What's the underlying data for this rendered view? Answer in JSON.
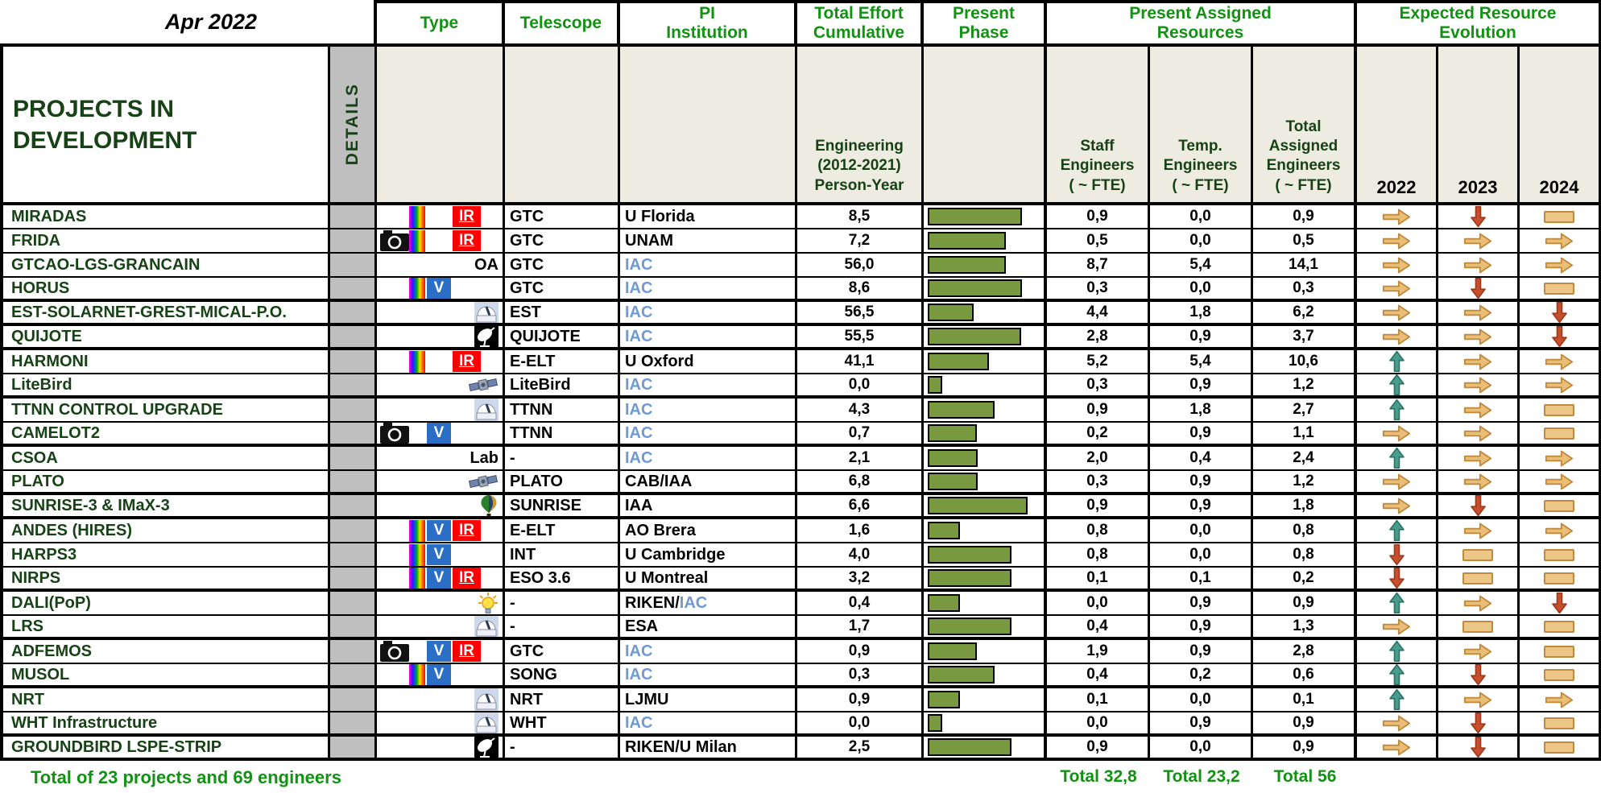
{
  "meta": {
    "date_label": "Apr 2022",
    "table_title": "PROJECTS IN\nDEVELOPMENT",
    "details_label": "DETAILS"
  },
  "columns": {
    "type": "Type",
    "telescope": "Telescope",
    "pi": "PI\nInstitution",
    "effort": "Total Effort\nCumulative",
    "effort_sub": "Engineering\n(2012-2021)\nPerson-Year",
    "phase": "Present\nPhase",
    "resources_group": "Present Assigned\nResources",
    "staff_sub": "Staff\nEngineers\n( ~ FTE)",
    "temp_sub": "Temp.\nEngineers\n( ~ FTE)",
    "total_sub": "Total\nAssigned\nEngineers\n( ~ FTE)",
    "evolution_group": "Expected Resource\nEvolution",
    "years": [
      "2022",
      "2023",
      "2024"
    ]
  },
  "icons": {
    "v_label": "V",
    "ir_label": "IR"
  },
  "colors": {
    "header_green": "#129212",
    "dark_green": "#164216",
    "iac_blue": "#6F9AD3",
    "header_beige": "#EEECE1",
    "details_gray": "#BFBFBF",
    "bar_green": "#78993F",
    "arrow_tan": "#EBBE78",
    "arrow_red": "#C74F2D",
    "arrow_teal": "#479D8D"
  },
  "rows": [
    {
      "name": "MIRADAS",
      "type": {
        "spectrum": true,
        "ir": true
      },
      "telescope": "GTC",
      "pi": [
        {
          "t": "U Florida",
          "c": "k"
        }
      ],
      "effort": "8,5",
      "phase_pct": 85,
      "staff": "0,9",
      "temp": "0,0",
      "total": "0,9",
      "evo": [
        "right",
        "down",
        "dash"
      ],
      "group_end": false
    },
    {
      "name": "FRIDA",
      "type": {
        "camera": true,
        "spectrum": true,
        "ir": true
      },
      "telescope": "GTC",
      "pi": [
        {
          "t": "UNAM",
          "c": "k"
        }
      ],
      "effort": "7,2",
      "phase_pct": 70,
      "staff": "0,5",
      "temp": "0,0",
      "total": "0,5",
      "evo": [
        "right",
        "right",
        "right"
      ],
      "group_end": false
    },
    {
      "name": "GTCAO-LGS-GRANCAIN",
      "type": {
        "text": "OA"
      },
      "telescope": "GTC",
      "pi": [
        {
          "t": "IAC",
          "c": "b"
        }
      ],
      "effort": "56,0",
      "phase_pct": 70,
      "staff": "8,7",
      "temp": "5,4",
      "total": "14,1",
      "evo": [
        "right",
        "right",
        "right"
      ],
      "group_end": false
    },
    {
      "name": "HORUS",
      "type": {
        "spectrum": true,
        "v": true
      },
      "telescope": "GTC",
      "pi": [
        {
          "t": "IAC",
          "c": "b"
        }
      ],
      "effort": "8,6",
      "phase_pct": 85,
      "staff": "0,3",
      "temp": "0,0",
      "total": "0,3",
      "evo": [
        "right",
        "down",
        "dash"
      ],
      "group_end": true
    },
    {
      "name": "EST-SOLARNET-GREST-MICAL-P.O.",
      "type": {
        "img": "dome"
      },
      "telescope": "EST",
      "pi": [
        {
          "t": "IAC",
          "c": "b"
        }
      ],
      "effort": "56,5",
      "phase_pct": 41,
      "staff": "4,4",
      "temp": "1,8",
      "total": "6,2",
      "evo": [
        "right",
        "right",
        "down"
      ],
      "group_end": true
    },
    {
      "name": "QUIJOTE",
      "type": {
        "img": "dish"
      },
      "telescope": "QUIJOTE",
      "pi": [
        {
          "t": "IAC",
          "c": "b"
        }
      ],
      "effort": "55,5",
      "phase_pct": 84,
      "staff": "2,8",
      "temp": "0,9",
      "total": "3,7",
      "evo": [
        "right",
        "right",
        "down"
      ],
      "group_end": true
    },
    {
      "name": "HARMONI",
      "type": {
        "spectrum": true,
        "ir": true
      },
      "telescope": "E-ELT",
      "pi": [
        {
          "t": "U Oxford",
          "c": "k"
        }
      ],
      "effort": "41,1",
      "phase_pct": 55,
      "staff": "5,2",
      "temp": "5,4",
      "total": "10,6",
      "evo": [
        "up",
        "right",
        "right"
      ],
      "group_end": false
    },
    {
      "name": "LiteBird",
      "type": {
        "img": "satellite"
      },
      "telescope": "LiteBird",
      "pi": [
        {
          "t": "IAC",
          "c": "b"
        }
      ],
      "effort": "0,0",
      "phase_pct": 13,
      "staff": "0,3",
      "temp": "0,9",
      "total": "1,2",
      "evo": [
        "up",
        "right",
        "right"
      ],
      "group_end": true
    },
    {
      "name": "TTNN CONTROL UPGRADE",
      "type": {
        "img": "dome"
      },
      "telescope": "TTNN",
      "pi": [
        {
          "t": "IAC",
          "c": "b"
        }
      ],
      "effort": "4,3",
      "phase_pct": 60,
      "staff": "0,9",
      "temp": "1,8",
      "total": "2,7",
      "evo": [
        "up",
        "right",
        "dash"
      ],
      "group_end": false
    },
    {
      "name": "CAMELOT2",
      "type": {
        "camera": true,
        "v": true
      },
      "telescope": "TTNN",
      "pi": [
        {
          "t": "IAC",
          "c": "b"
        }
      ],
      "effort": "0,7",
      "phase_pct": 44,
      "staff": "0,2",
      "temp": "0,9",
      "total": "1,1",
      "evo": [
        "right",
        "right",
        "dash"
      ],
      "group_end": true
    },
    {
      "name": "CSOA",
      "type": {
        "text": "Lab"
      },
      "telescope": "-",
      "pi": [
        {
          "t": "IAC",
          "c": "b"
        }
      ],
      "effort": "2,1",
      "phase_pct": 45,
      "staff": "2,0",
      "temp": "0,4",
      "total": "2,4",
      "evo": [
        "up",
        "right",
        "right"
      ],
      "group_end": false
    },
    {
      "name": "PLATO",
      "type": {
        "img": "satellite"
      },
      "telescope": "PLATO",
      "pi": [
        {
          "t": "CAB/IAA",
          "c": "k"
        }
      ],
      "effort": "6,8",
      "phase_pct": 45,
      "staff": "0,3",
      "temp": "0,9",
      "total": "1,2",
      "evo": [
        "right",
        "right",
        "right"
      ],
      "group_end": true
    },
    {
      "name": "SUNRISE-3 & IMaX-3",
      "type": {
        "img": "balloon"
      },
      "telescope": "SUNRISE",
      "pi": [
        {
          "t": "IAA",
          "c": "k"
        }
      ],
      "effort": "6,6",
      "phase_pct": 90,
      "staff": "0,9",
      "temp": "0,9",
      "total": "1,8",
      "evo": [
        "right",
        "down",
        "dash"
      ],
      "group_end": true
    },
    {
      "name": "ANDES (HIRES)",
      "type": {
        "spectrum": true,
        "v": true,
        "ir": true
      },
      "telescope": "E-ELT",
      "pi": [
        {
          "t": "AO Brera",
          "c": "k"
        }
      ],
      "effort": "1,6",
      "phase_pct": 29,
      "staff": "0,8",
      "temp": "0,0",
      "total": "0,8",
      "evo": [
        "up",
        "right",
        "right"
      ],
      "group_end": false
    },
    {
      "name": "HARPS3",
      "type": {
        "spectrum": true,
        "v": true
      },
      "telescope": "INT",
      "pi": [
        {
          "t": "U Cambridge",
          "c": "k"
        }
      ],
      "effort": "4,0",
      "phase_pct": 75,
      "staff": "0,8",
      "temp": "0,0",
      "total": "0,8",
      "evo": [
        "down",
        "dash",
        "dash"
      ],
      "group_end": false
    },
    {
      "name": "NIRPS",
      "type": {
        "spectrum": true,
        "v": true,
        "ir": true
      },
      "telescope": "ESO 3.6",
      "pi": [
        {
          "t": "U Montreal",
          "c": "k"
        }
      ],
      "effort": "3,2",
      "phase_pct": 75,
      "staff": "0,1",
      "temp": "0,1",
      "total": "0,2",
      "evo": [
        "down",
        "dash",
        "dash"
      ],
      "group_end": true
    },
    {
      "name": "DALI(PoP)",
      "type": {
        "img": "bulb"
      },
      "telescope": "-",
      "pi": [
        {
          "t": "RIKEN/",
          "c": "k"
        },
        {
          "t": "IAC",
          "c": "b"
        }
      ],
      "effort": "0,4",
      "phase_pct": 29,
      "staff": "0,0",
      "temp": "0,9",
      "total": "0,9",
      "evo": [
        "up",
        "right",
        "down"
      ],
      "group_end": false
    },
    {
      "name": "LRS",
      "type": {
        "img": "dome"
      },
      "telescope": "-",
      "pi": [
        {
          "t": "ESA",
          "c": "k"
        }
      ],
      "effort": "1,7",
      "phase_pct": 75,
      "staff": "0,4",
      "temp": "0,9",
      "total": "1,3",
      "evo": [
        "right",
        "dash",
        "dash"
      ],
      "group_end": true
    },
    {
      "name": "ADFEMOS",
      "type": {
        "camera": true,
        "v": true,
        "ir": true
      },
      "telescope": "GTC",
      "pi": [
        {
          "t": "IAC",
          "c": "b"
        }
      ],
      "effort": "0,9",
      "phase_pct": 44,
      "staff": "1,9",
      "temp": "0,9",
      "total": "2,8",
      "evo": [
        "up",
        "right",
        "dash"
      ],
      "group_end": false
    },
    {
      "name": "MUSOL",
      "type": {
        "spectrum": true,
        "v": true
      },
      "telescope": "SONG",
      "pi": [
        {
          "t": "IAC",
          "c": "b"
        }
      ],
      "effort": "0,3",
      "phase_pct": 60,
      "staff": "0,4",
      "temp": "0,2",
      "total": "0,6",
      "evo": [
        "up",
        "down",
        "dash"
      ],
      "group_end": true
    },
    {
      "name": "NRT",
      "type": {
        "img": "dome"
      },
      "telescope": "NRT",
      "pi": [
        {
          "t": "LJMU",
          "c": "k"
        }
      ],
      "effort": "0,9",
      "phase_pct": 29,
      "staff": "0,1",
      "temp": "0,0",
      "total": "0,1",
      "evo": [
        "up",
        "right",
        "right"
      ],
      "group_end": false
    },
    {
      "name": "WHT Infrastructure",
      "type": {
        "img": "dome"
      },
      "telescope": "WHT",
      "pi": [
        {
          "t": "IAC",
          "c": "b"
        }
      ],
      "effort": "0,0",
      "phase_pct": 13,
      "staff": "0,0",
      "temp": "0,9",
      "total": "0,9",
      "evo": [
        "right",
        "down",
        "dash"
      ],
      "group_end": true
    },
    {
      "name": "GROUNDBIRD LSPE-STRIP",
      "type": {
        "img": "dish"
      },
      "telescope": "-",
      "pi": [
        {
          "t": "RIKEN/U Milan",
          "c": "k"
        }
      ],
      "effort": "2,5",
      "phase_pct": 75,
      "staff": "0,9",
      "temp": "0,0",
      "total": "0,9",
      "evo": [
        "right",
        "down",
        "dash"
      ],
      "group_end": true
    }
  ],
  "footer": {
    "summary": "Total of 23 projects and 69 engineers",
    "staff_total": "Total 32,8",
    "temp_total": "Total 23,2",
    "assigned_total": "Total 56"
  }
}
